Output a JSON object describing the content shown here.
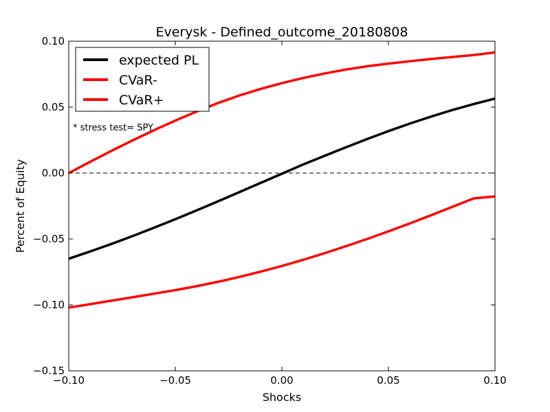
{
  "chart_data": {
    "type": "line",
    "title": "Everysk - Defined_outcome_20180808",
    "xlabel": "Shocks",
    "ylabel": "Percent of Equity",
    "xlim": [
      -0.1,
      0.1
    ],
    "ylim": [
      -0.15,
      0.1
    ],
    "xticks": [
      -0.1,
      -0.05,
      0.0,
      0.05,
      0.1
    ],
    "xtick_labels": [
      "−0.10",
      "−0.05",
      "0.00",
      "0.05",
      "0.10"
    ],
    "yticks": [
      0.1,
      0.05,
      0.0,
      -0.05,
      -0.1,
      -0.15
    ],
    "ytick_labels": [
      "0.10",
      "0.05",
      "0.00",
      "−0.05",
      "−0.10",
      "−0.15"
    ],
    "grid": false,
    "legend_position": "top-left",
    "reference_line": {
      "y": 0.0,
      "style": "dashed",
      "color": "#000000"
    },
    "annotation": "* stress test=  SPY",
    "series": [
      {
        "name": "expected PL",
        "color": "#000000",
        "x": [
          -0.1,
          -0.09,
          -0.08,
          -0.07,
          -0.06,
          -0.05,
          -0.04,
          -0.03,
          -0.02,
          -0.01,
          0.0,
          0.01,
          0.02,
          0.03,
          0.04,
          0.05,
          0.06,
          0.07,
          0.08,
          0.09,
          0.1
        ],
        "y": [
          -0.065,
          -0.0595,
          -0.0538,
          -0.0478,
          -0.0415,
          -0.035,
          -0.0283,
          -0.0215,
          -0.0145,
          -0.0075,
          -0.0005,
          0.0065,
          0.013,
          0.0195,
          0.0258,
          0.0318,
          0.0375,
          0.0428,
          0.0478,
          0.0523,
          0.0565
        ]
      },
      {
        "name": "CVaR-",
        "color": "#ff0000",
        "x": [
          -0.1,
          -0.09,
          -0.08,
          -0.07,
          -0.06,
          -0.05,
          -0.04,
          -0.03,
          -0.02,
          -0.01,
          0.0,
          0.01,
          0.02,
          0.03,
          0.04,
          0.05,
          0.06,
          0.07,
          0.08,
          0.09,
          0.1
        ],
        "y": [
          0.0,
          0.0085,
          0.0168,
          0.0248,
          0.0325,
          0.0398,
          0.0467,
          0.0531,
          0.0588,
          0.0638,
          0.0682,
          0.0721,
          0.0755,
          0.0785,
          0.081,
          0.083,
          0.0848,
          0.0865,
          0.088,
          0.0895,
          0.0915
        ]
      },
      {
        "name": "CVaR+",
        "color": "#ff0000",
        "x": [
          -0.1,
          -0.09,
          -0.08,
          -0.07,
          -0.06,
          -0.05,
          -0.04,
          -0.03,
          -0.02,
          -0.01,
          0.0,
          0.01,
          0.02,
          0.03,
          0.04,
          0.05,
          0.06,
          0.07,
          0.08,
          0.09,
          0.1
        ],
        "y": [
          -0.102,
          -0.0995,
          -0.0968,
          -0.0942,
          -0.0915,
          -0.0888,
          -0.0858,
          -0.0825,
          -0.0788,
          -0.0748,
          -0.0705,
          -0.0658,
          -0.0608,
          -0.0555,
          -0.05,
          -0.0442,
          -0.0382,
          -0.032,
          -0.0256,
          -0.0192,
          -0.0178
        ]
      }
    ]
  }
}
